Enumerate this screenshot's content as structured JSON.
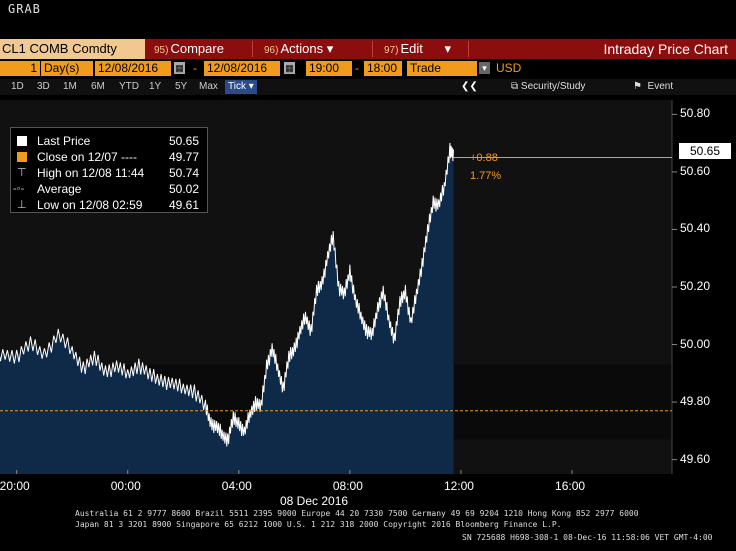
{
  "header": {
    "app_label": "GRAB"
  },
  "menu": {
    "ticker": "CL1 COMB Comdty",
    "compare": {
      "num": "95)",
      "label": "Compare"
    },
    "actions": {
      "num": "96)",
      "label": "Actions",
      "arrow": "▾"
    },
    "edit": {
      "num": "97)",
      "label": "Edit",
      "arrow": "▾"
    },
    "chart_title": "Intraday Price Chart"
  },
  "params": {
    "period_count": "1",
    "period_unit": "Day(s)",
    "start_date": "12/08/2016",
    "end_date": "12/08/2016",
    "start_time": "19:00",
    "end_time": "18:00",
    "field": "Trade",
    "currency": "USD"
  },
  "ranges": {
    "buttons": [
      "1D",
      "3D",
      "1M",
      "6M",
      "YTD",
      "1Y",
      "5Y",
      "Max"
    ],
    "tick": "Tick ▾",
    "collapse": "❮❮",
    "security_study": "Security/Study",
    "event": "Event"
  },
  "legend": {
    "items": [
      {
        "label": "Last Price",
        "value": "50.65"
      },
      {
        "label": "Close on 12/07  ----",
        "value": "49.77"
      },
      {
        "label": "High on 12/08 11:44",
        "value": "50.74"
      },
      {
        "label": "Average",
        "value": "50.02"
      },
      {
        "label": "Low on 12/08 02:59",
        "value": "49.61"
      }
    ]
  },
  "annotations": {
    "last_price_tag": "50.65",
    "change_abs": "+0.88",
    "change_pct": "1.77%"
  },
  "chart_data": {
    "type": "line",
    "title": "",
    "xlabel": "08 Dec 2016",
    "ylabel": "",
    "x_ticks": [
      "20:00",
      "00:00",
      "04:00",
      "08:00",
      "12:00",
      "16:00"
    ],
    "x_tick_hours": [
      -4,
      0,
      4,
      8,
      12,
      16
    ],
    "y_ticks": [
      "49.60",
      "49.80",
      "50.00",
      "50.20",
      "50.40",
      "50.60",
      "50.80"
    ],
    "ylim": [
      49.55,
      50.85
    ],
    "xlim_hours": [
      -4.6,
      19.6
    ],
    "reference_line": {
      "name": "Close on 12/07",
      "value": 49.77
    },
    "series": [
      {
        "name": "Last Price",
        "x_hours": [
          -5.0,
          -4.5,
          -4.0,
          -3.5,
          -3.0,
          -2.5,
          -2.0,
          -1.6,
          -1.2,
          -0.8,
          -0.4,
          0.0,
          0.4,
          0.8,
          1.2,
          1.6,
          2.0,
          2.4,
          2.8,
          3.0,
          3.2,
          3.4,
          3.6,
          3.8,
          4.0,
          4.2,
          4.4,
          4.6,
          4.8,
          5.0,
          5.2,
          5.4,
          5.6,
          5.8,
          6.0,
          6.2,
          6.4,
          6.6,
          6.8,
          7.0,
          7.2,
          7.4,
          7.6,
          7.8,
          8.0,
          8.2,
          8.4,
          8.6,
          8.8,
          9.0,
          9.2,
          9.4,
          9.6,
          9.8,
          10.0,
          10.2,
          10.4,
          10.6,
          10.8,
          11.0,
          11.2,
          11.4,
          11.6,
          11.73
        ],
        "values": [
          49.93,
          49.97,
          49.96,
          50.0,
          49.97,
          50.03,
          49.98,
          49.92,
          49.95,
          49.91,
          49.92,
          49.9,
          49.93,
          49.89,
          49.88,
          49.86,
          49.85,
          49.84,
          49.78,
          49.73,
          49.71,
          49.69,
          49.67,
          49.74,
          49.73,
          49.69,
          49.76,
          49.8,
          49.78,
          49.93,
          49.98,
          49.92,
          49.85,
          49.95,
          49.99,
          50.04,
          50.1,
          50.05,
          50.18,
          50.22,
          50.3,
          50.38,
          50.2,
          50.17,
          50.26,
          50.15,
          50.1,
          50.05,
          50.03,
          50.13,
          50.18,
          50.09,
          50.02,
          50.14,
          50.19,
          50.07,
          50.18,
          50.28,
          50.39,
          50.5,
          50.48,
          50.55,
          50.68,
          50.65
        ]
      }
    ],
    "high": 50.74,
    "low": 49.61,
    "average": 50.02,
    "grid": false,
    "legend_position": "top-left",
    "colors": {
      "line": "#ffffff",
      "fill": "#0e2a48",
      "reference": "#f09b1b",
      "background": "#111111"
    }
  },
  "footer": {
    "line1": "Australia 61 2 9777 8600 Brazil 5511 2395 9000 Europe 44 20 7330 7500 Germany 49 69 9204 1210 Hong Kong 852 2977 6000",
    "line2": "Japan 81 3 3201 8900       Singapore 65 6212 1000       U.S. 1 212 318 2000        Copyright 2016 Bloomberg Finance L.P.",
    "line3": "SN 725688 H698-308-1 08-Dec-16 11:58:06 VET  GMT-4:00"
  }
}
